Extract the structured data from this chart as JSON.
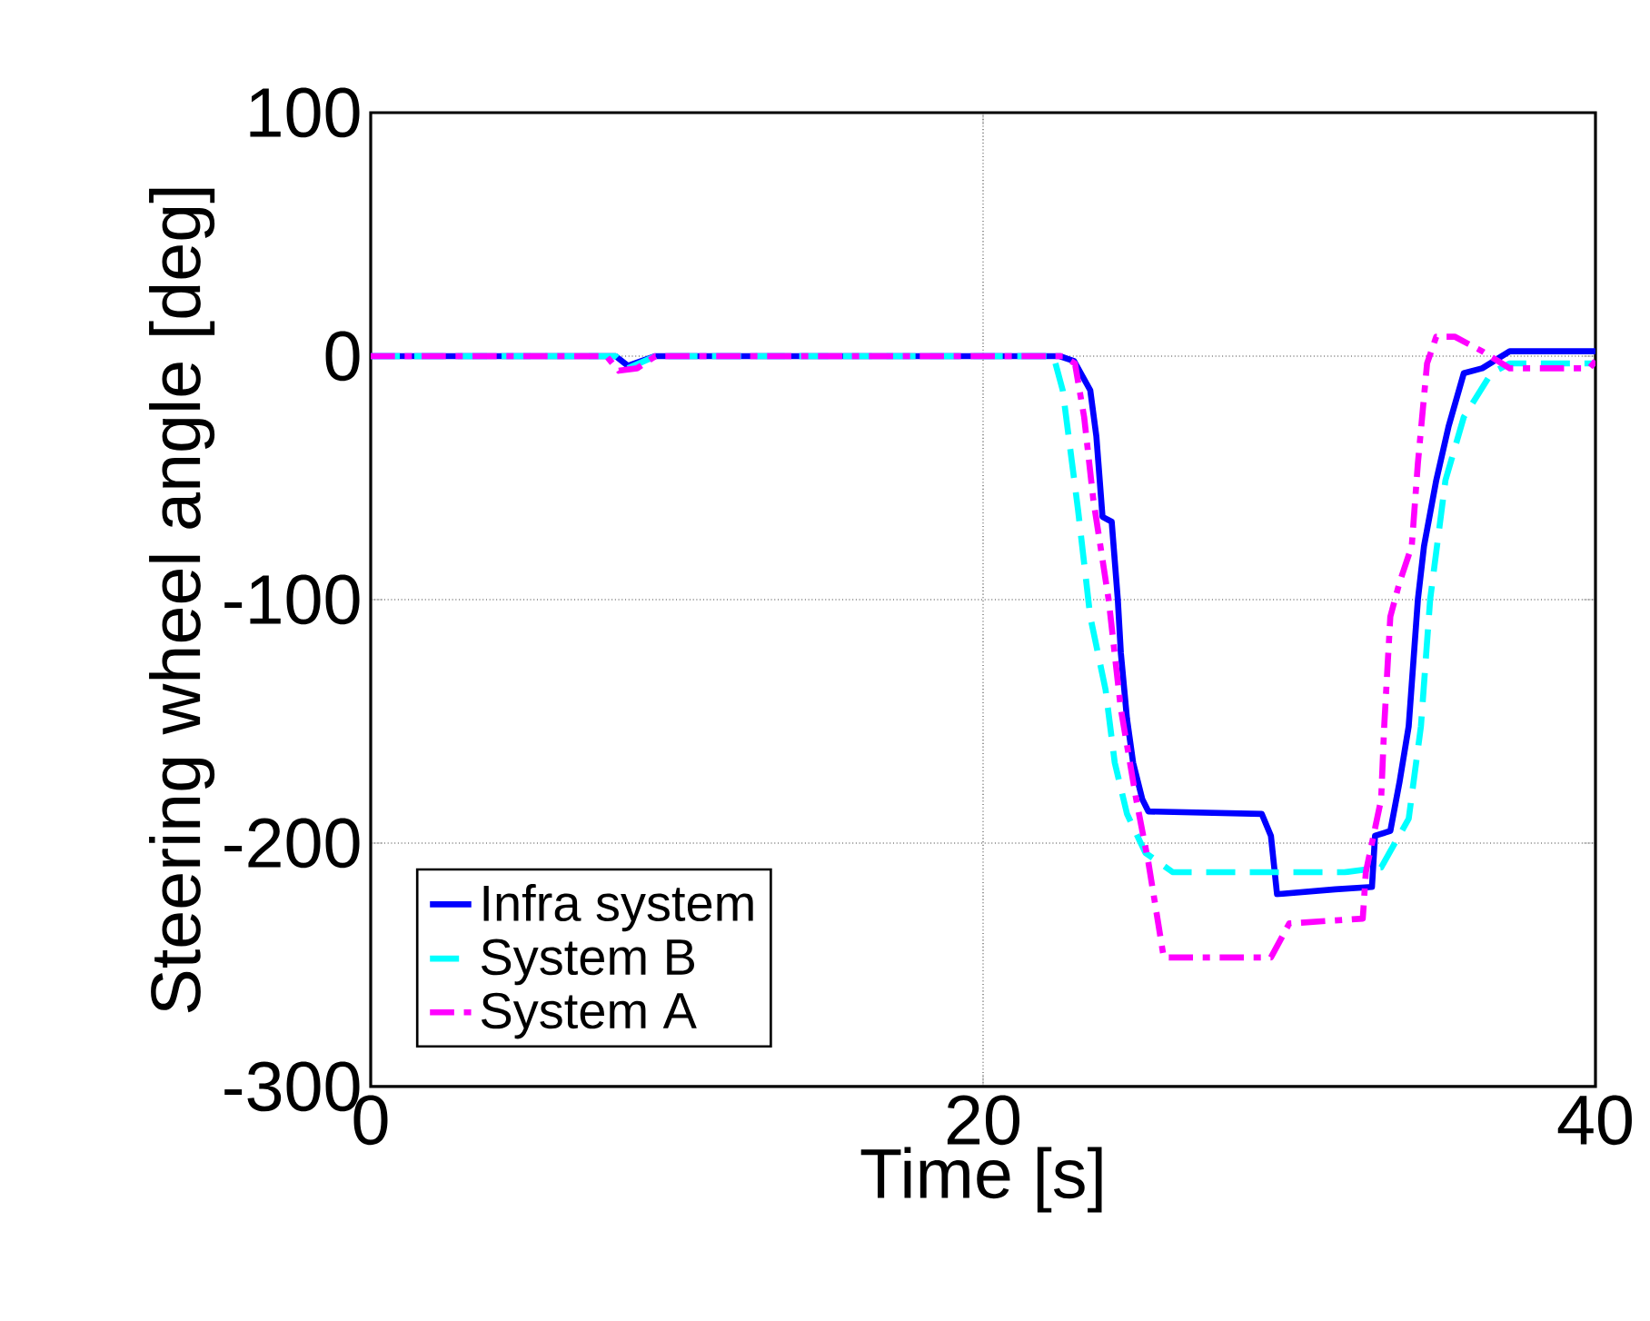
{
  "chart_data": {
    "type": "line",
    "xlabel": "Time [s]",
    "ylabel": "Steering wheel angle [deg]",
    "xlim": [
      0,
      40
    ],
    "ylim": [
      -300,
      100
    ],
    "xticks": [
      0,
      20,
      40
    ],
    "yticks": [
      -300,
      -200,
      -100,
      0,
      100
    ],
    "grid": true,
    "legend": "bottom left",
    "marker": "none",
    "series": [
      {
        "name": "Infra system",
        "color": "#0000ff",
        "line_style": "solid",
        "x": [
          0,
          8,
          8.4,
          9.3,
          22.5,
          22.97,
          23.5,
          23.7,
          23.9,
          24.2,
          24.4,
          24.5,
          24.7,
          24.9,
          25.2,
          25.4,
          29.1,
          29.4,
          29.6,
          31.5,
          32.7,
          32.8,
          33.3,
          33.6,
          33.9,
          34.2,
          34.4,
          34.8,
          35.2,
          35.7,
          36.3,
          37.2,
          40
        ],
        "values": [
          0,
          0,
          -4,
          0,
          0,
          -2,
          -14,
          -33,
          -66,
          -68,
          -100,
          -122,
          -149,
          -167,
          -182,
          -187,
          -188,
          -197,
          -221,
          -219,
          -218,
          -197,
          -195,
          -175,
          -152,
          -100,
          -78,
          -51,
          -29,
          -7,
          -5,
          2,
          2
        ]
      },
      {
        "name": "System B",
        "color": "#00ffff",
        "line_style": "dashed",
        "x": [
          0,
          8,
          8.4,
          9.3,
          22.3,
          22.6,
          23.1,
          23.5,
          24.0,
          24.3,
          24.7,
          25.3,
          26.2,
          31.8,
          33.0,
          33.9,
          34.3,
          34.6,
          35.1,
          35.7,
          36.6,
          37.2,
          40
        ],
        "values": [
          0,
          0,
          -5,
          0,
          0,
          -14,
          -63,
          -107,
          -137,
          -167,
          -188,
          -204,
          -212,
          -212,
          -210,
          -190,
          -152,
          -100,
          -51,
          -25,
          -7,
          -3,
          -3
        ]
      },
      {
        "name": "System A",
        "color": "#ff00ff",
        "line_style": "dashdot",
        "x": [
          0,
          7.7,
          8.1,
          8.7,
          9.3,
          22.6,
          23.0,
          23.3,
          23.6,
          24.1,
          24.5,
          25.0,
          25.4,
          25.9,
          29.4,
          30.0,
          32.4,
          32.5,
          33.0,
          33.1,
          33.3,
          33.6,
          34.0,
          34.2,
          34.5,
          34.8,
          35.4,
          36.3,
          37.2,
          39.8,
          40
        ],
        "values": [
          0,
          0,
          -6,
          -5,
          0,
          0,
          -3,
          -25,
          -59,
          -100,
          -145,
          -182,
          -208,
          -247,
          -247,
          -233,
          -231,
          -212,
          -182,
          -152,
          -107,
          -93,
          -78,
          -44,
          -3,
          8,
          8,
          2,
          -5,
          -5,
          -2
        ]
      }
    ]
  }
}
